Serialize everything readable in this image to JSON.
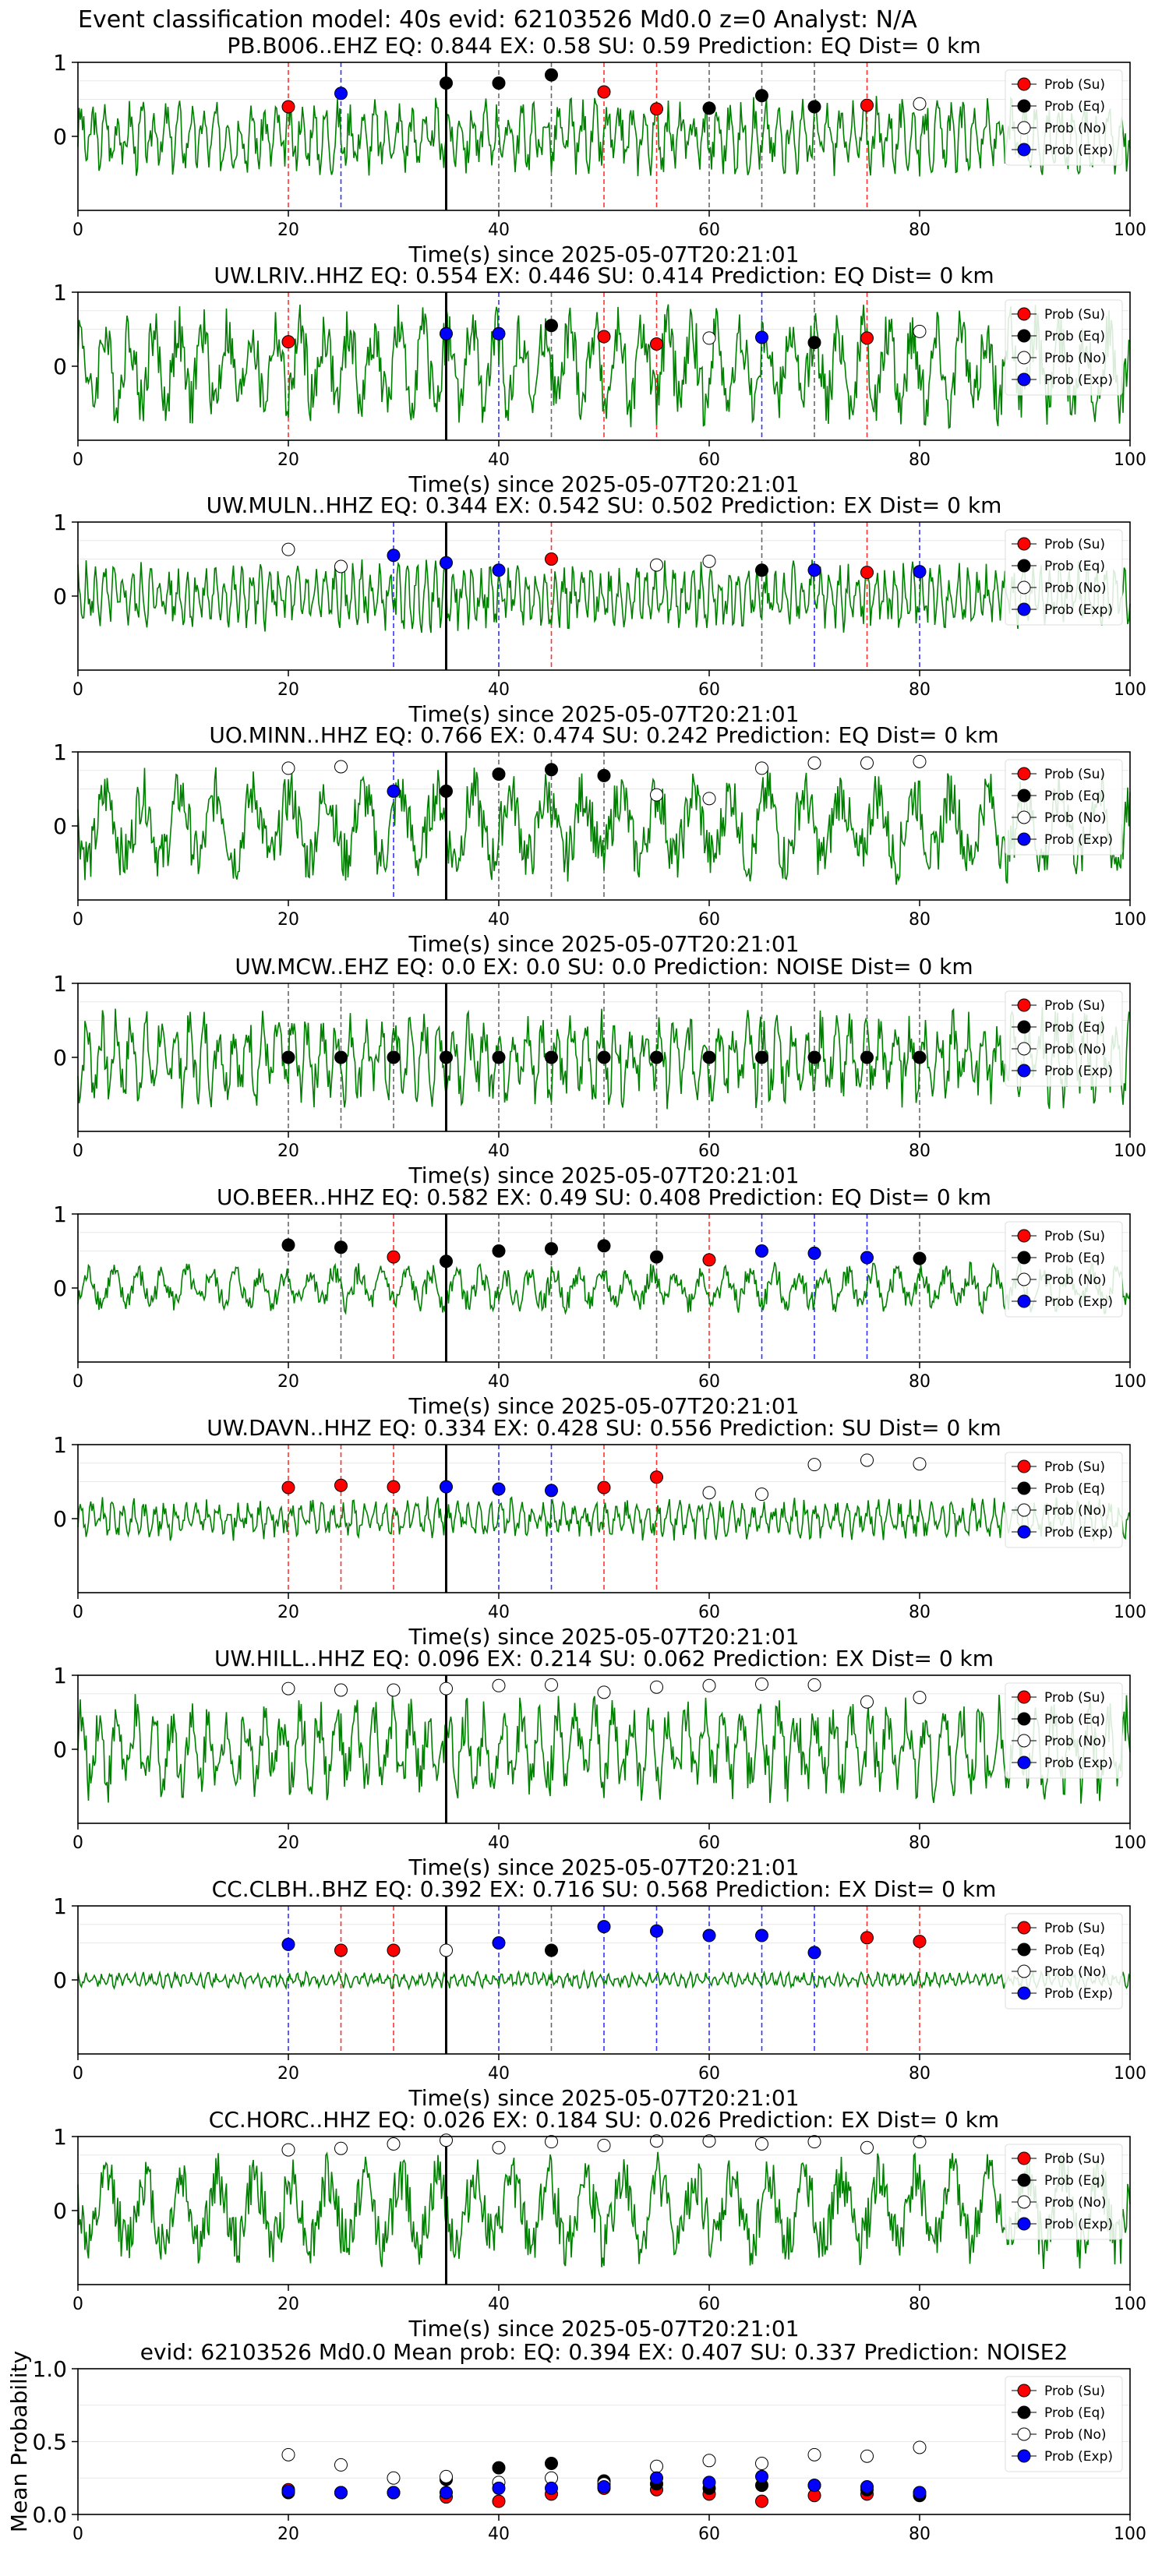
{
  "figure": {
    "title": "Event classification model: 40s evid: 62103526 Md0.0 z=0 Analyst: N/A",
    "colors": {
      "su": "#ff0000",
      "eq": "#000000",
      "no": "#ffffff",
      "exp": "#0000ff",
      "trace": "#008000"
    },
    "legend_labels": [
      "Prob (Su)",
      "Prob (Eq)",
      "Prob (No)",
      "Prob (Exp)"
    ]
  },
  "chart_data": [
    {
      "type": "scatter",
      "station": "PB.B006..EHZ",
      "title": "PB.B006..EHZ   EQ: 0.844  EX: 0.58  SU: 0.59   Prediction: EQ    Dist= 0 km",
      "xlabel": "Time(s) since 2025-05-07T20:21:01",
      "ylabel": "",
      "xlim": [
        0,
        100
      ],
      "ylim": [
        -1,
        1
      ],
      "xticks": [
        "0",
        "20",
        "40",
        "60",
        "80",
        "100"
      ],
      "yticks": [
        "1",
        "0"
      ],
      "legend": "right",
      "vline": 35,
      "amp": 0.55,
      "period": 6,
      "points": [
        {
          "x": 20,
          "y": 0.4,
          "class": "su"
        },
        {
          "x": 25,
          "y": 0.58,
          "class": "exp"
        },
        {
          "x": 35,
          "y": 0.72,
          "class": "eq"
        },
        {
          "x": 40,
          "y": 0.72,
          "class": "eq"
        },
        {
          "x": 45,
          "y": 0.83,
          "class": "eq"
        },
        {
          "x": 50,
          "y": 0.6,
          "class": "su"
        },
        {
          "x": 55,
          "y": 0.37,
          "class": "su"
        },
        {
          "x": 60,
          "y": 0.38,
          "class": "eq"
        },
        {
          "x": 65,
          "y": 0.55,
          "class": "eq"
        },
        {
          "x": 70,
          "y": 0.4,
          "class": "eq"
        },
        {
          "x": 75,
          "y": 0.42,
          "class": "su"
        },
        {
          "x": 80,
          "y": 0.44,
          "class": "no"
        }
      ]
    },
    {
      "type": "scatter",
      "station": "UW.LRIV..HHZ",
      "title": "UW.LRIV..HHZ   EQ: 0.554  EX: 0.446  SU: 0.414   Prediction: EQ    Dist= 0 km",
      "xlabel": "Time(s) since 2025-05-07T20:21:01",
      "ylabel": "",
      "xlim": [
        0,
        100
      ],
      "ylim": [
        -1,
        1
      ],
      "xticks": [
        "0",
        "20",
        "40",
        "60",
        "80",
        "100"
      ],
      "yticks": [
        "1",
        "0"
      ],
      "legend": "right",
      "vline": 35,
      "amp": 0.85,
      "period": 3,
      "points": [
        {
          "x": 20,
          "y": 0.33,
          "class": "su"
        },
        {
          "x": 35,
          "y": 0.44,
          "class": "exp"
        },
        {
          "x": 40,
          "y": 0.44,
          "class": "exp"
        },
        {
          "x": 45,
          "y": 0.55,
          "class": "eq"
        },
        {
          "x": 50,
          "y": 0.4,
          "class": "su"
        },
        {
          "x": 55,
          "y": 0.3,
          "class": "su"
        },
        {
          "x": 60,
          "y": 0.38,
          "class": "no"
        },
        {
          "x": 65,
          "y": 0.39,
          "class": "exp"
        },
        {
          "x": 70,
          "y": 0.32,
          "class": "eq"
        },
        {
          "x": 75,
          "y": 0.38,
          "class": "su"
        },
        {
          "x": 80,
          "y": 0.47,
          "class": "no"
        }
      ]
    },
    {
      "type": "scatter",
      "station": "UW.MULN..HHZ",
      "title": "UW.MULN..HHZ   EQ: 0.344  EX: 0.542  SU: 0.502   Prediction: EX    Dist= 0 km",
      "xlabel": "Time(s) since 2025-05-07T20:21:01",
      "ylabel": "",
      "xlim": [
        0,
        100
      ],
      "ylim": [
        -1,
        1
      ],
      "xticks": [
        "0",
        "20",
        "40",
        "60",
        "80",
        "100"
      ],
      "yticks": [
        "1",
        "0"
      ],
      "legend": "right",
      "vline": 35,
      "amp": 0.5,
      "period": 8,
      "points": [
        {
          "x": 20,
          "y": 0.63,
          "class": "no"
        },
        {
          "x": 25,
          "y": 0.4,
          "class": "no"
        },
        {
          "x": 30,
          "y": 0.55,
          "class": "exp"
        },
        {
          "x": 35,
          "y": 0.45,
          "class": "exp"
        },
        {
          "x": 40,
          "y": 0.35,
          "class": "exp"
        },
        {
          "x": 45,
          "y": 0.5,
          "class": "su"
        },
        {
          "x": 55,
          "y": 0.42,
          "class": "no"
        },
        {
          "x": 60,
          "y": 0.47,
          "class": "no"
        },
        {
          "x": 65,
          "y": 0.35,
          "class": "eq"
        },
        {
          "x": 70,
          "y": 0.35,
          "class": "exp"
        },
        {
          "x": 75,
          "y": 0.32,
          "class": "su"
        },
        {
          "x": 80,
          "y": 0.33,
          "class": "exp"
        }
      ]
    },
    {
      "type": "scatter",
      "station": "UO.MINN..HHZ",
      "title": "UO.MINN..HHZ   EQ: 0.766  EX: 0.474  SU: 0.242   Prediction: EQ    Dist= 0 km",
      "xlabel": "Time(s) since 2025-05-07T20:21:01",
      "ylabel": "",
      "xlim": [
        0,
        100
      ],
      "ylim": [
        -1,
        1
      ],
      "xticks": [
        "0",
        "20",
        "40",
        "60",
        "80",
        "100"
      ],
      "yticks": [
        "1",
        "0"
      ],
      "legend": "right",
      "vline": 35,
      "amp": 0.8,
      "period": 2,
      "points": [
        {
          "x": 20,
          "y": 0.78,
          "class": "no"
        },
        {
          "x": 25,
          "y": 0.8,
          "class": "no"
        },
        {
          "x": 30,
          "y": 0.47,
          "class": "exp"
        },
        {
          "x": 35,
          "y": 0.47,
          "class": "eq"
        },
        {
          "x": 40,
          "y": 0.7,
          "class": "eq"
        },
        {
          "x": 45,
          "y": 0.76,
          "class": "eq"
        },
        {
          "x": 50,
          "y": 0.68,
          "class": "eq"
        },
        {
          "x": 55,
          "y": 0.42,
          "class": "no"
        },
        {
          "x": 60,
          "y": 0.37,
          "class": "no"
        },
        {
          "x": 65,
          "y": 0.78,
          "class": "no"
        },
        {
          "x": 70,
          "y": 0.85,
          "class": "no"
        },
        {
          "x": 75,
          "y": 0.85,
          "class": "no"
        },
        {
          "x": 80,
          "y": 0.87,
          "class": "no"
        }
      ]
    },
    {
      "type": "scatter",
      "station": "UW.MCW..EHZ",
      "title": "UW.MCW..EHZ   EQ: 0.0  EX: 0.0  SU: 0.0   Prediction: NOISE    Dist= 0 km",
      "xlabel": "Time(s) since 2025-05-07T20:21:01",
      "ylabel": "",
      "xlim": [
        0,
        100
      ],
      "ylim": [
        -1,
        1
      ],
      "xticks": [
        "0",
        "20",
        "40",
        "60",
        "80",
        "100"
      ],
      "yticks": [
        "1",
        "0"
      ],
      "legend": "right",
      "vline": 35,
      "amp": 0.7,
      "period": 5,
      "points": [
        {
          "x": 20,
          "y": 0,
          "class": "eq"
        },
        {
          "x": 25,
          "y": 0,
          "class": "eq"
        },
        {
          "x": 30,
          "y": 0,
          "class": "eq"
        },
        {
          "x": 35,
          "y": 0,
          "class": "eq"
        },
        {
          "x": 40,
          "y": 0,
          "class": "eq"
        },
        {
          "x": 45,
          "y": 0,
          "class": "eq"
        },
        {
          "x": 50,
          "y": 0,
          "class": "eq"
        },
        {
          "x": 55,
          "y": 0,
          "class": "eq"
        },
        {
          "x": 60,
          "y": 0,
          "class": "eq"
        },
        {
          "x": 65,
          "y": 0,
          "class": "eq"
        },
        {
          "x": 70,
          "y": 0,
          "class": "eq"
        },
        {
          "x": 75,
          "y": 0,
          "class": "eq"
        },
        {
          "x": 80,
          "y": 0,
          "class": "eq"
        }
      ]
    },
    {
      "type": "scatter",
      "station": "UO.BEER..HHZ",
      "title": "UO.BEER..HHZ   EQ: 0.582  EX: 0.49  SU: 0.408   Prediction: EQ    Dist= 0 km",
      "xlabel": "Time(s) since 2025-05-07T20:21:01",
      "ylabel": "",
      "xlim": [
        0,
        100
      ],
      "ylim": [
        -1,
        1
      ],
      "xticks": [
        "0",
        "20",
        "40",
        "60",
        "80",
        "100"
      ],
      "yticks": [
        "1",
        "0"
      ],
      "legend": "right",
      "vline": 35,
      "amp": 0.35,
      "period": 3,
      "points": [
        {
          "x": 20,
          "y": 0.58,
          "class": "eq"
        },
        {
          "x": 25,
          "y": 0.55,
          "class": "eq"
        },
        {
          "x": 30,
          "y": 0.42,
          "class": "su"
        },
        {
          "x": 35,
          "y": 0.36,
          "class": "eq"
        },
        {
          "x": 40,
          "y": 0.5,
          "class": "eq"
        },
        {
          "x": 45,
          "y": 0.53,
          "class": "eq"
        },
        {
          "x": 50,
          "y": 0.57,
          "class": "eq"
        },
        {
          "x": 55,
          "y": 0.42,
          "class": "eq"
        },
        {
          "x": 60,
          "y": 0.38,
          "class": "su"
        },
        {
          "x": 65,
          "y": 0.5,
          "class": "exp"
        },
        {
          "x": 70,
          "y": 0.47,
          "class": "exp"
        },
        {
          "x": 75,
          "y": 0.41,
          "class": "exp"
        },
        {
          "x": 80,
          "y": 0.4,
          "class": "eq"
        }
      ]
    },
    {
      "type": "scatter",
      "station": "UW.DAVN..HHZ",
      "title": "UW.DAVN..HHZ   EQ: 0.334  EX: 0.428  SU: 0.556   Prediction: SU    Dist= 0 km",
      "xlabel": "Time(s) since 2025-05-07T20:21:01",
      "ylabel": "",
      "xlim": [
        0,
        100
      ],
      "ylim": [
        -1,
        1
      ],
      "xticks": [
        "0",
        "20",
        "40",
        "60",
        "80",
        "100"
      ],
      "yticks": [
        "1",
        "0"
      ],
      "legend": "right",
      "vline": 35,
      "amp": 0.3,
      "period": 7,
      "points": [
        {
          "x": 20,
          "y": 0.42,
          "class": "su"
        },
        {
          "x": 25,
          "y": 0.45,
          "class": "su"
        },
        {
          "x": 30,
          "y": 0.43,
          "class": "su"
        },
        {
          "x": 35,
          "y": 0.43,
          "class": "exp"
        },
        {
          "x": 40,
          "y": 0.4,
          "class": "exp"
        },
        {
          "x": 45,
          "y": 0.38,
          "class": "exp"
        },
        {
          "x": 50,
          "y": 0.42,
          "class": "su"
        },
        {
          "x": 55,
          "y": 0.56,
          "class": "su"
        },
        {
          "x": 60,
          "y": 0.35,
          "class": "no"
        },
        {
          "x": 65,
          "y": 0.33,
          "class": "no"
        },
        {
          "x": 70,
          "y": 0.73,
          "class": "no"
        },
        {
          "x": 75,
          "y": 0.79,
          "class": "no"
        },
        {
          "x": 80,
          "y": 0.74,
          "class": "no"
        }
      ]
    },
    {
      "type": "scatter",
      "station": "UW.HILL..HHZ",
      "title": "UW.HILL..HHZ   EQ: 0.096  EX: 0.214  SU: 0.062   Prediction: EX    Dist= 0 km",
      "xlabel": "Time(s) since 2025-05-07T20:21:01",
      "ylabel": "",
      "xlim": [
        0,
        100
      ],
      "ylim": [
        -1,
        1
      ],
      "xticks": [
        "0",
        "20",
        "40",
        "60",
        "80",
        "100"
      ],
      "yticks": [
        "1",
        "0"
      ],
      "legend": "right",
      "vline": 35,
      "amp": 0.75,
      "period": 4,
      "points": [
        {
          "x": 20,
          "y": 0.82,
          "class": "no"
        },
        {
          "x": 25,
          "y": 0.8,
          "class": "no"
        },
        {
          "x": 30,
          "y": 0.8,
          "class": "no"
        },
        {
          "x": 35,
          "y": 0.82,
          "class": "no"
        },
        {
          "x": 40,
          "y": 0.86,
          "class": "no"
        },
        {
          "x": 45,
          "y": 0.87,
          "class": "no"
        },
        {
          "x": 50,
          "y": 0.77,
          "class": "no"
        },
        {
          "x": 55,
          "y": 0.84,
          "class": "no"
        },
        {
          "x": 60,
          "y": 0.86,
          "class": "no"
        },
        {
          "x": 65,
          "y": 0.88,
          "class": "no"
        },
        {
          "x": 70,
          "y": 0.87,
          "class": "no"
        },
        {
          "x": 75,
          "y": 0.64,
          "class": "no"
        },
        {
          "x": 80,
          "y": 0.7,
          "class": "no"
        }
      ]
    },
    {
      "type": "scatter",
      "station": "CC.CLBH..BHZ",
      "title": "CC.CLBH..BHZ   EQ: 0.392  EX: 0.716  SU: 0.568   Prediction: EX    Dist= 0 km",
      "xlabel": "Time(s) since 2025-05-07T20:21:01",
      "ylabel": "",
      "xlim": [
        0,
        100
      ],
      "ylim": [
        -1,
        1
      ],
      "xticks": [
        "0",
        "20",
        "40",
        "60",
        "80",
        "100"
      ],
      "yticks": [
        "1",
        "0"
      ],
      "legend": "right",
      "vline": 35,
      "amp": 0.12,
      "period": 9,
      "points": [
        {
          "x": 20,
          "y": 0.48,
          "class": "exp"
        },
        {
          "x": 25,
          "y": 0.4,
          "class": "su"
        },
        {
          "x": 30,
          "y": 0.4,
          "class": "su"
        },
        {
          "x": 35,
          "y": 0.4,
          "class": "no"
        },
        {
          "x": 40,
          "y": 0.5,
          "class": "exp"
        },
        {
          "x": 45,
          "y": 0.4,
          "class": "eq"
        },
        {
          "x": 50,
          "y": 0.72,
          "class": "exp"
        },
        {
          "x": 55,
          "y": 0.66,
          "class": "exp"
        },
        {
          "x": 60,
          "y": 0.6,
          "class": "exp"
        },
        {
          "x": 65,
          "y": 0.6,
          "class": "exp"
        },
        {
          "x": 70,
          "y": 0.37,
          "class": "exp"
        },
        {
          "x": 75,
          "y": 0.57,
          "class": "su"
        },
        {
          "x": 80,
          "y": 0.52,
          "class": "su"
        }
      ]
    },
    {
      "type": "scatter",
      "station": "CC.HORC..HHZ",
      "title": "CC.HORC..HHZ   EQ: 0.026  EX: 0.184  SU: 0.026   Prediction: EX    Dist= 0 km",
      "xlabel": "Time(s) since 2025-05-07T20:21:01",
      "ylabel": "",
      "xlim": [
        0,
        100
      ],
      "ylim": [
        -1,
        1
      ],
      "xticks": [
        "0",
        "20",
        "40",
        "60",
        "80",
        "100"
      ],
      "yticks": [
        "1",
        "0"
      ],
      "legend": "right",
      "vline": 35,
      "amp": 0.8,
      "period": 2,
      "points": [
        {
          "x": 20,
          "y": 0.82,
          "class": "no"
        },
        {
          "x": 25,
          "y": 0.84,
          "class": "no"
        },
        {
          "x": 30,
          "y": 0.9,
          "class": "no"
        },
        {
          "x": 35,
          "y": 0.95,
          "class": "no"
        },
        {
          "x": 40,
          "y": 0.85,
          "class": "no"
        },
        {
          "x": 45,
          "y": 0.93,
          "class": "no"
        },
        {
          "x": 50,
          "y": 0.88,
          "class": "no"
        },
        {
          "x": 55,
          "y": 0.94,
          "class": "no"
        },
        {
          "x": 60,
          "y": 0.94,
          "class": "no"
        },
        {
          "x": 65,
          "y": 0.9,
          "class": "no"
        },
        {
          "x": 70,
          "y": 0.93,
          "class": "no"
        },
        {
          "x": 75,
          "y": 0.85,
          "class": "no"
        },
        {
          "x": 80,
          "y": 0.93,
          "class": "no"
        }
      ]
    },
    {
      "type": "scatter",
      "station": "summary",
      "title": "evid: 62103526  Md0.0   Mean prob:   EQ: 0.394  EX: 0.407  SU: 0.337   Prediction: NOISE2",
      "xlabel": "",
      "ylabel": "Mean Probability",
      "xlim": [
        0,
        100
      ],
      "ylim": [
        0,
        1
      ],
      "xticks": [
        "0",
        "20",
        "40",
        "60",
        "80",
        "100"
      ],
      "yticks": [
        "1.0",
        "0.5",
        "0.0"
      ],
      "legend": "right",
      "series": [
        {
          "name": "Prob (Su)",
          "class": "su",
          "x": [
            20,
            25,
            30,
            35,
            40,
            45,
            50,
            55,
            60,
            65,
            70,
            75,
            80
          ],
          "y": [
            0.17,
            0.15,
            0.15,
            0.12,
            0.09,
            0.14,
            0.18,
            0.17,
            0.14,
            0.09,
            0.13,
            0.14,
            0.15
          ]
        },
        {
          "name": "Prob (Eq)",
          "class": "eq",
          "x": [
            20,
            25,
            30,
            35,
            40,
            45,
            50,
            55,
            60,
            65,
            70,
            75,
            80
          ],
          "y": [
            0.15,
            0.15,
            0.15,
            0.24,
            0.32,
            0.35,
            0.23,
            0.21,
            0.18,
            0.2,
            0.2,
            0.17,
            0.13
          ]
        },
        {
          "name": "Prob (No)",
          "class": "no",
          "x": [
            20,
            25,
            30,
            35,
            40,
            45,
            50,
            55,
            60,
            65,
            70,
            75,
            80
          ],
          "y": [
            0.41,
            0.34,
            0.25,
            0.26,
            0.22,
            0.25,
            0.21,
            0.33,
            0.37,
            0.35,
            0.41,
            0.4,
            0.46
          ]
        },
        {
          "name": "Prob (Exp)",
          "class": "exp",
          "x": [
            20,
            25,
            30,
            35,
            40,
            45,
            50,
            55,
            60,
            65,
            70,
            75,
            80
          ],
          "y": [
            0.16,
            0.15,
            0.15,
            0.15,
            0.18,
            0.18,
            0.19,
            0.25,
            0.22,
            0.26,
            0.2,
            0.19,
            0.15
          ]
        }
      ]
    }
  ]
}
